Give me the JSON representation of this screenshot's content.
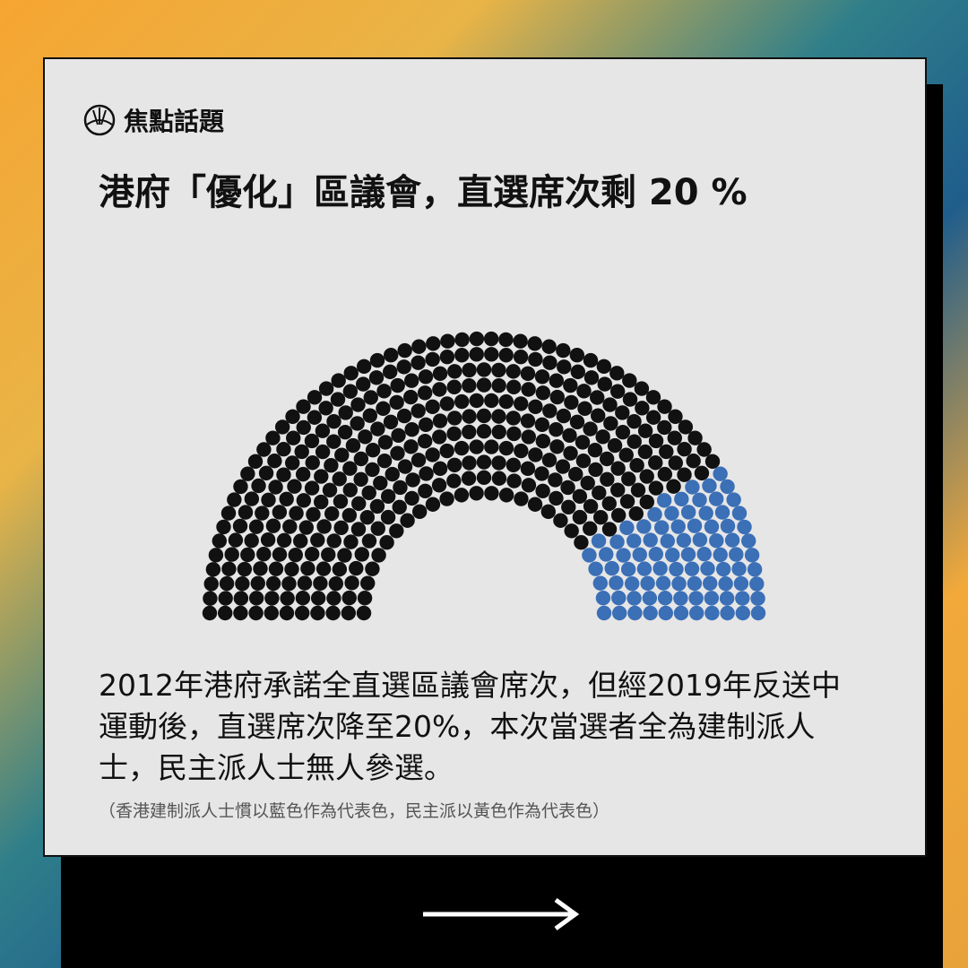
{
  "brand": "焦點話題",
  "chart_data": {
    "type": "parliament",
    "title": "港府「優化」區議會，直選席次剩 20 %",
    "values": [
      382,
      88
    ],
    "colors": [
      "#111111",
      "#3b6fb6"
    ]
  },
  "description": "2012年港府承諾全直選區議會席次，但經2019年反送中運動後，直選席次降至20%，本次當選者全為建制派人士，民主派人士無人參選。",
  "note": "（香港建制派人士慣以藍色作為代表色，民主派以黃色作為代表色）"
}
